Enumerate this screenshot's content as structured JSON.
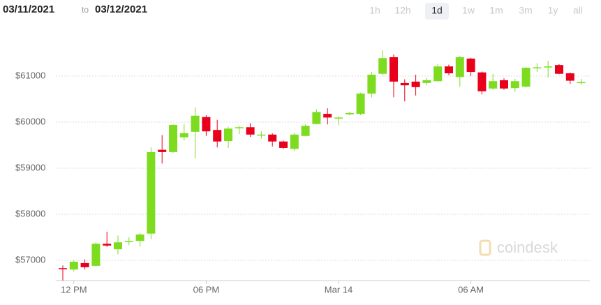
{
  "header": {
    "from": "03/11/2021",
    "to_word": "to",
    "to": "03/12/2021"
  },
  "range_buttons": [
    "1h",
    "12h",
    "1d",
    "1w",
    "1m",
    "3m",
    "1y",
    "all"
  ],
  "selected_range": "1d",
  "chart_data": {
    "type": "candlestick",
    "watermark": "coindesk",
    "categories": [
      null,
      "12 PM",
      null,
      null,
      null,
      null,
      null,
      null,
      null,
      null,
      null,
      null,
      null,
      "06 PM",
      null,
      null,
      null,
      null,
      null,
      null,
      null,
      null,
      null,
      null,
      null,
      "Mar 14",
      null,
      null,
      null,
      null,
      null,
      null,
      null,
      null,
      null,
      null,
      null,
      "06 AM",
      null,
      null,
      null,
      null,
      null,
      null,
      null,
      null,
      null,
      null
    ],
    "open": [
      56830,
      56800,
      56940,
      56880,
      57360,
      57240,
      57400,
      57420,
      57580,
      59400,
      59350,
      59670,
      59790,
      60110,
      59830,
      59590,
      59870,
      59890,
      59710,
      59730,
      59580,
      59420,
      59700,
      59960,
      60180,
      60090,
      60170,
      60180,
      60620,
      61050,
      61410,
      60850,
      60880,
      60850,
      60890,
      61210,
      60980,
      61380,
      61080,
      60730,
      60910,
      60740,
      60770,
      61180,
      61190,
      61240,
      61060,
      60850
    ],
    "high": [
      56890,
      57000,
      57020,
      57390,
      57620,
      57540,
      57500,
      57600,
      59450,
      59720,
      59950,
      59960,
      60320,
      60150,
      60050,
      59900,
      59920,
      59980,
      59800,
      59760,
      59600,
      59770,
      59950,
      60280,
      60300,
      60120,
      60220,
      60640,
      61090,
      61560,
      61470,
      60930,
      61030,
      60960,
      61260,
      61250,
      61440,
      61400,
      61100,
      61050,
      60950,
      60940,
      61200,
      61280,
      61330,
      61260,
      61080,
      60940
    ],
    "low": [
      56560,
      56760,
      56800,
      56870,
      57290,
      57130,
      57330,
      57300,
      57460,
      59100,
      59330,
      59600,
      59210,
      59700,
      59450,
      59440,
      59740,
      59680,
      59640,
      59470,
      59420,
      59380,
      59690,
      59950,
      59950,
      59940,
      60150,
      60150,
      60540,
      61020,
      60540,
      60450,
      60580,
      60800,
      60880,
      61020,
      60770,
      61000,
      60600,
      60700,
      60700,
      60660,
      60750,
      61090,
      60970,
      61040,
      60830,
      60810
    ],
    "close": [
      56820,
      56970,
      56850,
      57360,
      57320,
      57390,
      57420,
      57560,
      59350,
      59350,
      59940,
      59760,
      60140,
      59800,
      59580,
      59860,
      59890,
      59730,
      59730,
      59580,
      59440,
      59730,
      59920,
      60220,
      60100,
      60100,
      60200,
      60620,
      61030,
      61390,
      60880,
      60800,
      60760,
      60910,
      61210,
      61060,
      61410,
      61090,
      60670,
      60890,
      60730,
      60890,
      61180,
      61190,
      61210,
      61050,
      60900,
      60870
    ],
    "up_color": "#7ddc1f",
    "down_color": "#e8001c",
    "ylim": [
      56560,
      61970
    ],
    "yticks": [
      {
        "value": 57000,
        "label": "$57000"
      },
      {
        "value": 58000,
        "label": "$58000"
      },
      {
        "value": 59000,
        "label": "$59000"
      },
      {
        "value": 60000,
        "label": "$60000"
      },
      {
        "value": 61000,
        "label": "$61000"
      }
    ],
    "grid": true
  }
}
